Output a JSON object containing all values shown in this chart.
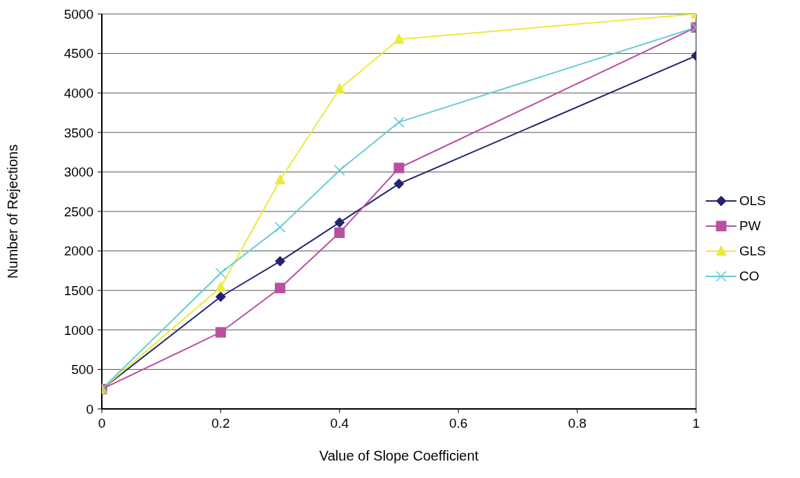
{
  "chart_data": {
    "type": "line",
    "xlabel": "Value of Slope Coefficient",
    "ylabel": "Number of Rejections",
    "x": [
      0,
      0.2,
      0.3,
      0.4,
      0.5,
      1
    ],
    "series": [
      {
        "name": "OLS",
        "color": "#24246e",
        "marker": "diamond",
        "values": [
          250,
          1420,
          1870,
          2360,
          2850,
          4470
        ]
      },
      {
        "name": "PW",
        "color": "#b84fa0",
        "marker": "square",
        "values": [
          250,
          970,
          1530,
          2230,
          3050,
          4830
        ]
      },
      {
        "name": "GLS",
        "color": "#ecea3c",
        "marker": "triangle",
        "values": [
          250,
          1540,
          2900,
          4050,
          4680,
          5000
        ]
      },
      {
        "name": "CO",
        "color": "#66ccd6",
        "marker": "cross",
        "values": [
          250,
          1720,
          2300,
          3020,
          3630,
          4830
        ]
      }
    ],
    "xlim": [
      0,
      1
    ],
    "xticks": [
      0,
      0.2,
      0.4,
      0.6,
      0.8,
      1
    ],
    "ylim": [
      0,
      5000
    ],
    "yticks": [
      0,
      500,
      1000,
      1500,
      2000,
      2500,
      3000,
      3500,
      4000,
      4500,
      5000
    ],
    "grid": "y",
    "legend": "right",
    "line_style": "solid"
  }
}
